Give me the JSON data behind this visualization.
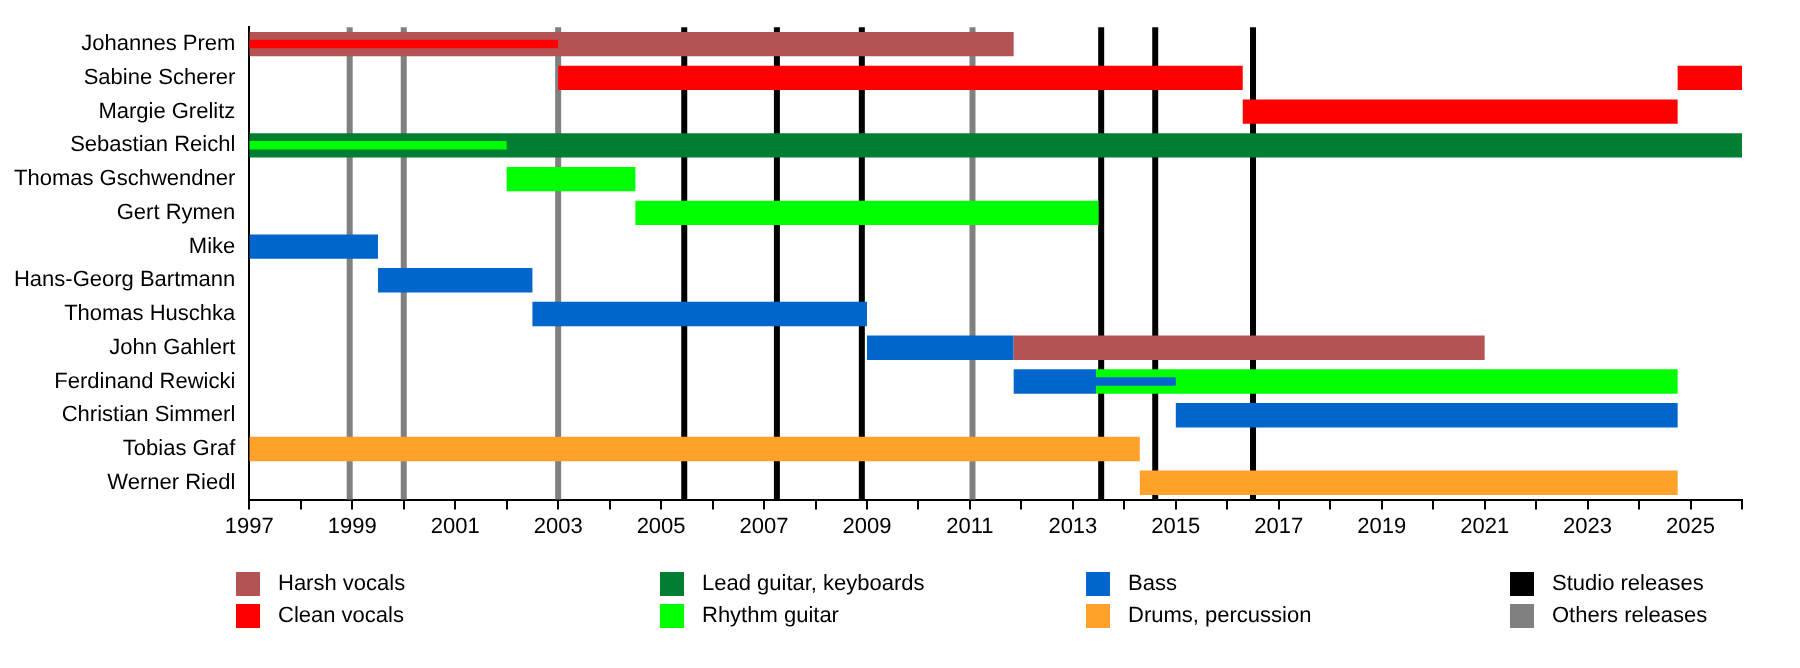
{
  "chart_data": {
    "type": "bar",
    "orientation": "horizontal",
    "grid": false,
    "legend": "bottom",
    "categories": [
      "Johannes Prem",
      "Sabine Scherer",
      "Margie Grelitz",
      "Sebastian Reichl",
      "Thomas Gschwendner",
      "Gert Rymen",
      "Mike",
      "Hans-Georg Bartmann",
      "Thomas Huschka",
      "John Gahlert",
      "Ferdinand Rewicki",
      "Christian Simmerl",
      "Tobias Graf",
      "Werner Riedl"
    ],
    "xlim": [
      1997,
      2026
    ],
    "xticks": [
      1997,
      {
        "value": 1998,
        "label": null
      },
      1999,
      {
        "value": 2000,
        "label": null
      },
      2001,
      {
        "value": 2002,
        "label": null
      },
      2003,
      {
        "value": 2004,
        "label": null
      },
      2005,
      {
        "value": 2006,
        "label": null
      },
      2007,
      {
        "value": 2008,
        "label": null
      },
      2009,
      {
        "value": 2010,
        "label": null
      },
      2011,
      {
        "value": 2012,
        "label": null
      },
      2013,
      {
        "value": 2014,
        "label": null
      },
      2015,
      {
        "value": 2016,
        "label": null
      },
      2017,
      {
        "value": 2018,
        "label": null
      },
      2019,
      {
        "value": 2020,
        "label": null
      },
      2021,
      {
        "value": 2022,
        "label": null
      },
      2023,
      {
        "value": 2024,
        "label": null
      },
      2025,
      {
        "value": 2026,
        "label": null
      }
    ],
    "series": [
      {
        "name": "Harsh vocals",
        "color": "#b35353",
        "base": [
          1997,
          null,
          null,
          null,
          null,
          null,
          null,
          null,
          null,
          2011.85,
          null,
          null,
          null,
          null
        ],
        "values": [
          14.85,
          null,
          null,
          null,
          null,
          null,
          null,
          null,
          null,
          9.15,
          null,
          null,
          null,
          null
        ]
      },
      {
        "name": "Clean vocals",
        "color": "#ff0000",
        "base": [
          1997,
          2003,
          2016.3,
          null,
          null,
          null,
          null,
          null,
          null,
          null,
          null,
          null,
          null,
          null
        ],
        "values": [
          6,
          13.3,
          8.45,
          null,
          null,
          null,
          null,
          null,
          null,
          null,
          null,
          null,
          null,
          null
        ]
      },
      {
        "name": "Lead guitar, keyboards",
        "color": "#007f33",
        "base": [
          null,
          null,
          null,
          1997,
          null,
          null,
          null,
          null,
          null,
          null,
          null,
          null,
          null,
          null
        ],
        "values": [
          null,
          null,
          null,
          29,
          null,
          null,
          null,
          null,
          null,
          null,
          null,
          null,
          null,
          null
        ]
      },
      {
        "name": "Rhythm guitar",
        "color": "#00ff00",
        "base": [
          null,
          null,
          null,
          1997,
          2002,
          2004.5,
          null,
          null,
          null,
          null,
          2013.45,
          null,
          null,
          null
        ],
        "values": [
          null,
          null,
          null,
          5,
          2.5,
          9,
          null,
          null,
          null,
          null,
          11.3,
          null,
          null,
          null
        ]
      },
      {
        "name": "Bass",
        "color": "#0066cc",
        "base": [
          null,
          null,
          null,
          null,
          null,
          null,
          1997,
          1999.5,
          2002.5,
          2009,
          2011.85,
          2015,
          null,
          null
        ],
        "values": [
          null,
          null,
          null,
          null,
          null,
          null,
          2.5,
          3,
          6.5,
          2.85,
          1.6,
          9.75,
          null,
          null
        ]
      },
      {
        "name": "Drums, percussion",
        "color": "#ffa12b",
        "base": [
          null,
          null,
          null,
          null,
          null,
          null,
          null,
          null,
          null,
          null,
          null,
          null,
          1997,
          2014.3
        ],
        "values": [
          null,
          null,
          null,
          null,
          null,
          null,
          null,
          null,
          null,
          null,
          null,
          null,
          17.3,
          10.45
        ]
      },
      {
        "color": "#ff0000",
        "base": [
          null,
          2024.75,
          null,
          null,
          null,
          null,
          null,
          null,
          null,
          null,
          null,
          null,
          null,
          null
        ],
        "values": [
          null,
          1.25,
          null,
          null,
          null,
          null,
          null,
          null,
          null,
          null,
          null,
          null,
          null,
          null
        ]
      },
      {
        "color": "#0066cc",
        "base": [
          null,
          null,
          null,
          null,
          null,
          null,
          null,
          null,
          null,
          null,
          2013.45,
          null,
          null,
          null
        ],
        "values": [
          null,
          null,
          null,
          null,
          null,
          null,
          null,
          null,
          null,
          null,
          1.55,
          null,
          null,
          null
        ]
      }
    ],
    "ref_lines": [
      {
        "axis": "x",
        "value": 1998.95,
        "label": "Others releases",
        "color": "#808080"
      },
      {
        "axis": "x",
        "value": 2000,
        "color": "#808080"
      },
      {
        "axis": "x",
        "value": 2003,
        "color": "#808080"
      },
      {
        "axis": "x",
        "value": 2005.45,
        "label": "Studio releases",
        "color": "#000000"
      },
      {
        "axis": "x",
        "value": 2007.25,
        "color": "#000000"
      },
      {
        "axis": "x",
        "value": 2008.9,
        "color": "#000000"
      },
      {
        "axis": "x",
        "value": 2011.05,
        "color": "#808080"
      },
      {
        "axis": "x",
        "value": 2013.55,
        "color": "#000000"
      },
      {
        "axis": "x",
        "value": 2014.6,
        "color": "#000000"
      },
      {
        "axis": "x",
        "value": 2016.5,
        "color": "#000000"
      }
    ]
  }
}
